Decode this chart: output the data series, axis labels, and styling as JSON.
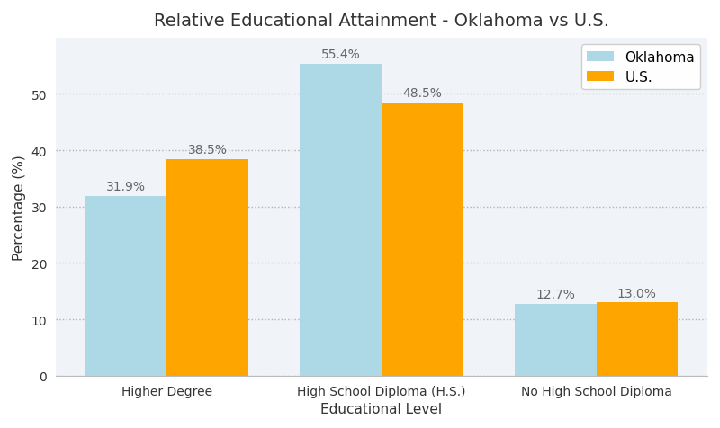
{
  "title": "Relative Educational Attainment - Oklahoma vs U.S.",
  "xlabel": "Educational Level",
  "ylabel": "Percentage (%)",
  "categories": [
    "Higher Degree",
    "High School Diploma (H.S.)",
    "No High School Diploma"
  ],
  "oklahoma_values": [
    31.9,
    55.4,
    12.7
  ],
  "us_values": [
    38.5,
    48.5,
    13.0
  ],
  "oklahoma_label": "Oklahoma",
  "us_label": "U.S.",
  "oklahoma_color": "#add8e6",
  "us_color": "#FFA500",
  "background_color": "#ffffff",
  "plot_bg_color": "#f0f4f8",
  "grid_color": "#aaaaaa",
  "title_fontsize": 14,
  "label_fontsize": 11,
  "tick_fontsize": 10,
  "annotation_fontsize": 10,
  "legend_fontsize": 11,
  "ylim": [
    0,
    60
  ],
  "yticks": [
    0,
    10,
    20,
    30,
    40,
    50
  ],
  "bar_width": 0.38
}
